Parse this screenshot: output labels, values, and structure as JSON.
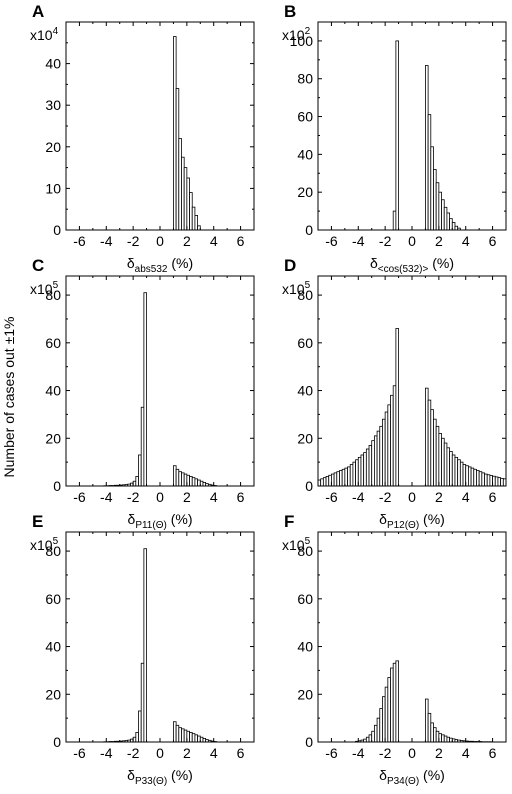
{
  "ylabel": "Number of cases out ±1%",
  "panels": [
    {
      "letter": "A",
      "xlabel": {
        "prefix": "δ",
        "sub": "abs532",
        "suffix": "(%)"
      },
      "mult": {
        "base": "x10",
        "exp": "4"
      },
      "chart_data": {
        "type": "bar",
        "xlim": [
          -7,
          7
        ],
        "ylim": [
          0,
          50
        ],
        "xticks": [
          -6,
          -4,
          -2,
          0,
          2,
          4,
          6
        ],
        "yticks": [
          0,
          10,
          20,
          30,
          40
        ],
        "bin_width": 0.2,
        "x": [
          1.1,
          1.3,
          1.5,
          1.7,
          1.9,
          2.1,
          2.3,
          2.5,
          2.7,
          2.9
        ],
        "values": [
          46.5,
          34,
          22,
          17.5,
          15,
          12.5,
          9,
          5.5,
          3.5,
          1
        ]
      }
    },
    {
      "letter": "B",
      "xlabel": {
        "prefix": "δ",
        "sub": "<cos(532)>",
        "suffix": "(%)"
      },
      "mult": {
        "base": "x10",
        "exp": "2"
      },
      "chart_data": {
        "type": "bar",
        "xlim": [
          -7,
          7
        ],
        "ylim": [
          0,
          110
        ],
        "xticks": [
          -6,
          -4,
          -2,
          0,
          2,
          4,
          6
        ],
        "yticks": [
          0,
          20,
          40,
          60,
          80,
          100
        ],
        "bin_width": 0.2,
        "x": [
          -1.3,
          -1.1,
          1.1,
          1.3,
          1.5,
          1.7,
          1.9,
          2.1,
          2.3,
          2.5,
          2.7,
          2.9,
          3.1,
          3.3,
          3.5
        ],
        "values": [
          10,
          100,
          87,
          61,
          44,
          32,
          25,
          20,
          16,
          12,
          9,
          6,
          4,
          2,
          1
        ]
      }
    },
    {
      "letter": "C",
      "xlabel": {
        "prefix": "δ",
        "sub": "P11(Θ)",
        "suffix": "(%)"
      },
      "mult": {
        "base": "x10",
        "exp": "5"
      },
      "chart_data": {
        "type": "bar",
        "xlim": [
          -7,
          7
        ],
        "ylim": [
          0,
          88
        ],
        "xticks": [
          -6,
          -4,
          -2,
          0,
          2,
          4,
          6
        ],
        "yticks": [
          0,
          20,
          40,
          60,
          80
        ],
        "bin_width": 0.2,
        "x": [
          -4.1,
          -3.9,
          -3.7,
          -3.5,
          -3.3,
          -3.1,
          -2.9,
          -2.7,
          -2.5,
          -2.3,
          -2.1,
          -1.9,
          -1.7,
          -1.5,
          -1.3,
          -1.1,
          1.1,
          1.3,
          1.5,
          1.7,
          1.9,
          2.1,
          2.3,
          2.5,
          2.7,
          2.9,
          3.1,
          3.3,
          3.5,
          3.7,
          3.9,
          4.1
        ],
        "values": [
          0.1,
          0.1,
          0.2,
          0.2,
          0.3,
          0.3,
          0.4,
          0.5,
          0.6,
          0.8,
          1.2,
          2,
          4,
          13,
          33,
          81,
          8.5,
          7,
          6,
          5.5,
          5,
          4.5,
          4,
          3.5,
          3,
          2.5,
          2,
          1.5,
          1,
          0.7,
          0.4,
          0.2
        ]
      }
    },
    {
      "letter": "D",
      "xlabel": {
        "prefix": "δ",
        "sub": "P12(Θ)",
        "suffix": "(%)"
      },
      "mult": {
        "base": "x10",
        "exp": "5"
      },
      "chart_data": {
        "type": "bar",
        "xlim": [
          -7,
          7
        ],
        "ylim": [
          0,
          88
        ],
        "xticks": [
          -6,
          -4,
          -2,
          0,
          2,
          4,
          6
        ],
        "yticks": [
          0,
          20,
          40,
          60,
          80
        ],
        "bin_width": 0.2,
        "x": [
          -6.9,
          -6.7,
          -6.5,
          -6.3,
          -6.1,
          -5.9,
          -5.7,
          -5.5,
          -5.3,
          -5.1,
          -4.9,
          -4.7,
          -4.5,
          -4.3,
          -4.1,
          -3.9,
          -3.7,
          -3.5,
          -3.3,
          -3.1,
          -2.9,
          -2.7,
          -2.5,
          -2.3,
          -2.1,
          -1.9,
          -1.7,
          -1.5,
          -1.3,
          -1.1,
          1.1,
          1.3,
          1.5,
          1.7,
          1.9,
          2.1,
          2.3,
          2.5,
          2.7,
          2.9,
          3.1,
          3.3,
          3.5,
          3.7,
          3.9,
          4.1,
          4.3,
          4.5,
          4.7,
          4.9,
          5.1,
          5.3,
          5.5,
          5.7,
          5.9,
          6.1,
          6.3,
          6.5,
          6.7,
          6.9
        ],
        "values": [
          2.5,
          3,
          3.5,
          4,
          4.5,
          5,
          5.5,
          6,
          6.5,
          7,
          7.5,
          8,
          9,
          10,
          11,
          12,
          13,
          14,
          15.5,
          17,
          19,
          21,
          23,
          25,
          28,
          31,
          34,
          38,
          42,
          66,
          41,
          36,
          32,
          28,
          25,
          22,
          20,
          18,
          16,
          14.5,
          13,
          12,
          11,
          10,
          9,
          8.5,
          8,
          7.5,
          7,
          6.5,
          6,
          5.5,
          5,
          4.7,
          4.4,
          4.1,
          3.8,
          3.5,
          3.2,
          3
        ]
      }
    },
    {
      "letter": "E",
      "xlabel": {
        "prefix": "δ",
        "sub": "P33(Θ)",
        "suffix": "(%)"
      },
      "mult": {
        "base": "x10",
        "exp": "5"
      },
      "chart_data": {
        "type": "bar",
        "xlim": [
          -7,
          7
        ],
        "ylim": [
          0,
          88
        ],
        "xticks": [
          -6,
          -4,
          -2,
          0,
          2,
          4,
          6
        ],
        "yticks": [
          0,
          20,
          40,
          60,
          80
        ],
        "bin_width": 0.2,
        "x": [
          -4.1,
          -3.9,
          -3.7,
          -3.5,
          -3.3,
          -3.1,
          -2.9,
          -2.7,
          -2.5,
          -2.3,
          -2.1,
          -1.9,
          -1.7,
          -1.5,
          -1.3,
          -1.1,
          1.1,
          1.3,
          1.5,
          1.7,
          1.9,
          2.1,
          2.3,
          2.5,
          2.7,
          2.9,
          3.1,
          3.3,
          3.5,
          3.7,
          3.9,
          4.1
        ],
        "values": [
          0.1,
          0.1,
          0.2,
          0.2,
          0.3,
          0.3,
          0.4,
          0.5,
          0.6,
          0.8,
          1.2,
          2,
          4,
          13,
          33,
          81,
          8.5,
          7,
          6,
          5.5,
          5,
          4.5,
          4,
          3.5,
          3,
          2.5,
          2,
          1.5,
          1,
          0.7,
          0.4,
          0.2
        ]
      }
    },
    {
      "letter": "F",
      "xlabel": {
        "prefix": "δ",
        "sub": "P34(Θ)",
        "suffix": "(%)"
      },
      "mult": {
        "base": "x10",
        "exp": "5"
      },
      "chart_data": {
        "type": "bar",
        "xlim": [
          -7,
          7
        ],
        "ylim": [
          0,
          88
        ],
        "xticks": [
          -6,
          -4,
          -2,
          0,
          2,
          4,
          6
        ],
        "yticks": [
          0,
          20,
          40,
          60,
          80
        ],
        "bin_width": 0.2,
        "x": [
          -4.1,
          -3.9,
          -3.7,
          -3.5,
          -3.3,
          -3.1,
          -2.9,
          -2.7,
          -2.5,
          -2.3,
          -2.1,
          -1.9,
          -1.7,
          -1.5,
          -1.3,
          -1.1,
          1.1,
          1.3,
          1.5,
          1.7,
          1.9,
          2.1,
          2.3,
          2.5,
          2.7,
          2.9,
          3.1,
          3.3,
          3.5,
          3.7,
          3.9,
          4.1,
          4.3,
          4.5,
          4.7,
          4.9,
          5.1,
          5.3,
          5.5,
          5.7,
          5.9
        ],
        "values": [
          0.3,
          0.5,
          0.8,
          1.2,
          2,
          3,
          4.5,
          7,
          10,
          14,
          19,
          23,
          27,
          31,
          33,
          34,
          18,
          12,
          8,
          6,
          4.5,
          3.5,
          3,
          2.5,
          2,
          1.6,
          1.3,
          1,
          0.8,
          0.6,
          0.5,
          0.4,
          0.3,
          0.3,
          0.2,
          0.2,
          0.2,
          0.1,
          0.1,
          0.1,
          0.1
        ]
      }
    }
  ]
}
